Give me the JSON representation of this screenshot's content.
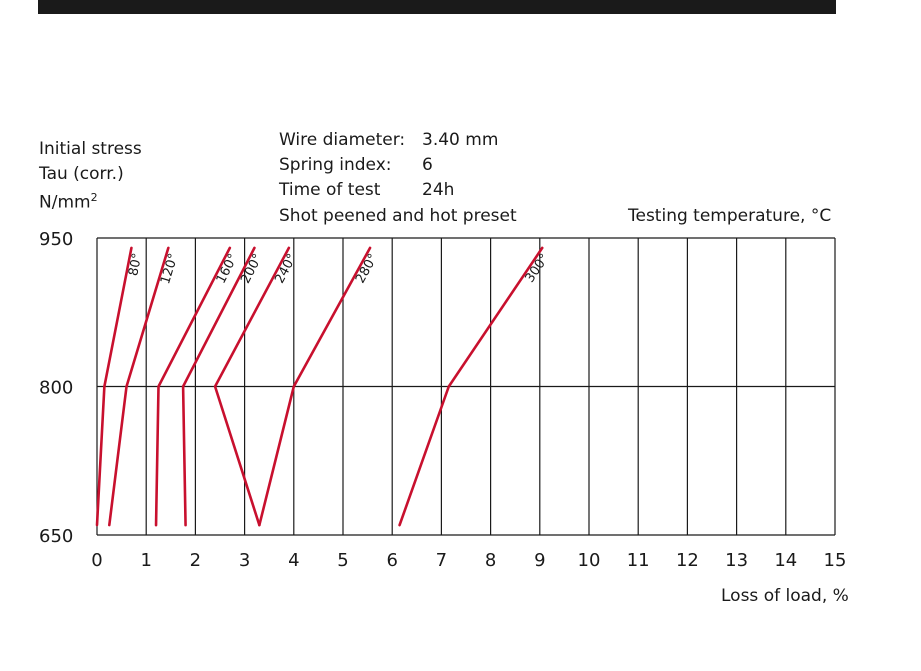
{
  "colors": {
    "curve": "#c8102e",
    "grid": "#1a1a1a",
    "topbar": "#1a1a1a"
  },
  "header": {
    "y_label_line1": "Initial stress",
    "y_label_line2": "Tau (corr.)",
    "y_label_line3": "N/mm",
    "y_label_sup": "2",
    "wire_label": "Wire diameter:",
    "wire_value": "3.40 mm",
    "index_label": "Spring index:",
    "index_value": "6",
    "time_label": "Time of test",
    "time_value": "24h",
    "treatment": "Shot peened and hot preset",
    "temp_label": "Testing temperature, °C"
  },
  "chart_data": {
    "type": "line",
    "xlabel": "Loss of load, %",
    "ylabel": "",
    "xlim": [
      0,
      15
    ],
    "ylim": [
      650,
      950
    ],
    "x_ticks": [
      "0",
      "1",
      "2",
      "3",
      "4",
      "5",
      "6",
      "7",
      "8",
      "9",
      "10",
      "11",
      "12",
      "13",
      "14",
      "15"
    ],
    "y_ticks": [
      "650",
      "800",
      "950"
    ],
    "grid": true,
    "series": [
      {
        "name": "80°",
        "points": [
          [
            0.0,
            660
          ],
          [
            0.15,
            800
          ],
          [
            0.7,
            940
          ]
        ]
      },
      {
        "name": "120°",
        "points": [
          [
            0.25,
            660
          ],
          [
            0.6,
            800
          ],
          [
            1.45,
            940
          ]
        ]
      },
      {
        "name": "160°",
        "points": [
          [
            1.2,
            660
          ],
          [
            1.25,
            800
          ],
          [
            2.7,
            940
          ]
        ]
      },
      {
        "name": "200°",
        "points": [
          [
            1.8,
            660
          ],
          [
            1.75,
            800
          ],
          [
            3.2,
            940
          ]
        ]
      },
      {
        "name": "240°",
        "points": [
          [
            3.3,
            660
          ],
          [
            2.4,
            800
          ],
          [
            3.9,
            940
          ]
        ]
      },
      {
        "name": "280°",
        "points": [
          [
            3.3,
            660
          ],
          [
            4.0,
            800
          ],
          [
            5.55,
            940
          ]
        ]
      },
      {
        "name": "300°",
        "points": [
          [
            6.15,
            660
          ],
          [
            7.15,
            800
          ],
          [
            9.05,
            940
          ]
        ]
      }
    ]
  }
}
